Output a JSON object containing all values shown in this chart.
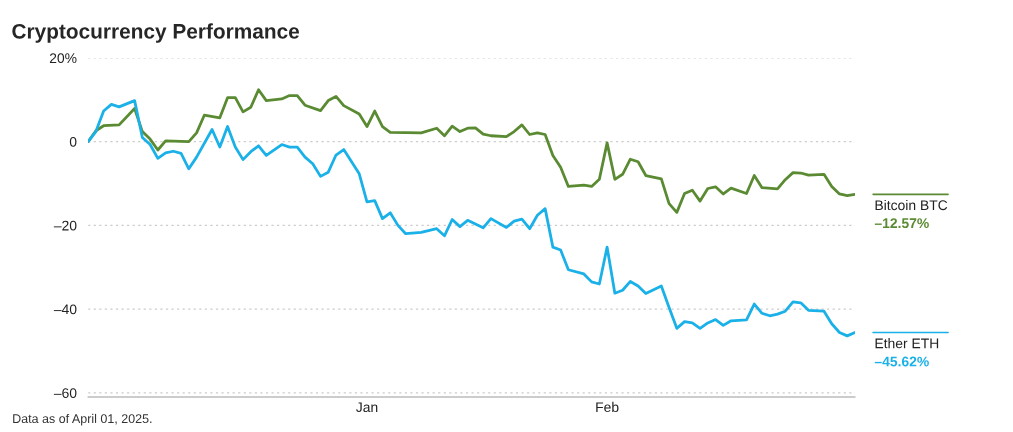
{
  "chart_data": {
    "type": "line",
    "title": "Cryptocurrency Performance",
    "series": [
      {
        "name": "Bitcoin BTC",
        "color": "#5a8a32",
        "x": [
          "2024-11-26",
          "2024-11-27",
          "2024-11-28",
          "2024-11-30",
          "2024-12-02",
          "2024-12-03",
          "2024-12-04",
          "2024-12-05",
          "2024-12-06",
          "2024-12-09",
          "2024-12-10",
          "2024-12-11",
          "2024-12-13",
          "2024-12-14",
          "2024-12-15",
          "2024-12-16",
          "2024-12-17",
          "2024-12-18",
          "2024-12-19",
          "2024-12-21",
          "2024-12-22",
          "2024-12-23",
          "2024-12-24",
          "2024-12-26",
          "2024-12-27",
          "2024-12-28",
          "2024-12-29",
          "2024-12-31",
          "2025-01-01",
          "2025-01-02",
          "2025-01-03",
          "2025-01-04",
          "2025-01-08",
          "2025-01-10",
          "2025-01-11",
          "2025-01-12",
          "2025-01-13",
          "2025-01-14",
          "2025-01-15",
          "2025-01-16",
          "2025-01-17",
          "2025-01-19",
          "2025-01-20",
          "2025-01-21",
          "2025-01-22",
          "2025-01-23",
          "2025-01-24",
          "2025-01-25",
          "2025-01-26",
          "2025-01-27",
          "2025-01-29",
          "2025-01-30",
          "2025-01-31",
          "2025-02-01",
          "2025-02-02",
          "2025-02-03",
          "2025-02-04",
          "2025-02-05",
          "2025-02-06",
          "2025-02-08",
          "2025-02-09",
          "2025-02-10",
          "2025-02-11",
          "2025-02-12",
          "2025-02-13",
          "2025-02-14",
          "2025-02-15",
          "2025-02-16",
          "2025-02-17",
          "2025-02-19",
          "2025-02-20",
          "2025-02-21",
          "2025-02-23",
          "2025-02-24",
          "2025-02-25",
          "2025-02-26",
          "2025-02-27",
          "2025-03-01",
          "2025-03-02",
          "2025-03-03",
          "2025-03-04",
          "2025-03-05"
        ],
        "values": [
          0,
          2.6,
          3.8,
          4.0,
          7.9,
          2.4,
          0.6,
          -2.0,
          0.2,
          0,
          2.1,
          6.3,
          5.7,
          10.5,
          10.5,
          7.1,
          8.2,
          12.4,
          9.8,
          10.2,
          11.0,
          11.0,
          8.7,
          7.4,
          9.8,
          10.8,
          8.6,
          6.6,
          3.6,
          7.3,
          3.6,
          2.2,
          2.1,
          3.2,
          1.4,
          3.7,
          2.4,
          3.2,
          3.3,
          1.8,
          1.4,
          1.2,
          2.4,
          4.0,
          1.7,
          2.1,
          1.7,
          -3.3,
          -6.1,
          -10.7,
          -10.4,
          -10.7,
          -9.0,
          -0.3,
          -9.0,
          -7.8,
          -4.2,
          -4.8,
          -8.1,
          -8.9,
          -14.8,
          -16.9,
          -12.4,
          -11.6,
          -14.2,
          -11.2,
          -10.8,
          -12.5,
          -11.1,
          -12.4,
          -8.1,
          -11.0,
          -11.3,
          -9.1,
          -7.4,
          -7.5,
          -8.0,
          -7.8,
          -10.7,
          -12.5,
          -12.9,
          -12.6
        ]
      },
      {
        "name": "Ether ETH",
        "color": "#1ab0e8",
        "x": [
          "2024-11-26",
          "2024-11-27",
          "2024-11-28",
          "2024-11-29",
          "2024-11-30",
          "2024-12-02",
          "2024-12-03",
          "2024-12-04",
          "2024-12-05",
          "2024-12-06",
          "2024-12-07",
          "2024-12-08",
          "2024-12-09",
          "2024-12-10",
          "2024-12-12",
          "2024-12-13",
          "2024-12-14",
          "2024-12-15",
          "2024-12-16",
          "2024-12-17",
          "2024-12-18",
          "2024-12-19",
          "2024-12-21",
          "2024-12-22",
          "2024-12-23",
          "2024-12-24",
          "2024-12-25",
          "2024-12-26",
          "2024-12-27",
          "2024-12-28",
          "2024-12-29",
          "2024-12-31",
          "2025-01-01",
          "2025-01-02",
          "2025-01-03",
          "2025-01-04",
          "2025-01-05",
          "2025-01-06",
          "2025-01-08",
          "2025-01-10",
          "2025-01-11",
          "2025-01-12",
          "2025-01-13",
          "2025-01-14",
          "2025-01-16",
          "2025-01-17",
          "2025-01-19",
          "2025-01-20",
          "2025-01-21",
          "2025-01-22",
          "2025-01-23",
          "2025-01-24",
          "2025-01-25",
          "2025-01-26",
          "2025-01-27",
          "2025-01-29",
          "2025-01-30",
          "2025-01-31",
          "2025-02-01",
          "2025-02-02",
          "2025-02-03",
          "2025-02-04",
          "2025-02-05",
          "2025-02-06",
          "2025-02-08",
          "2025-02-09",
          "2025-02-10",
          "2025-02-11",
          "2025-02-12",
          "2025-02-13",
          "2025-02-14",
          "2025-02-15",
          "2025-02-16",
          "2025-02-17",
          "2025-02-19",
          "2025-02-20",
          "2025-02-21",
          "2025-02-22",
          "2025-02-23",
          "2025-02-24",
          "2025-02-25",
          "2025-02-26",
          "2025-02-27",
          "2025-03-01",
          "2025-03-02",
          "2025-03-03",
          "2025-03-04",
          "2025-03-05"
        ],
        "values": [
          0,
          2.4,
          7.3,
          8.9,
          8.3,
          9.8,
          1.0,
          -0.7,
          -4.0,
          -2.7,
          -2.3,
          -2.8,
          -6.5,
          -3.7,
          2.9,
          -1.3,
          3.6,
          -1.3,
          -4.3,
          -2.4,
          -1.0,
          -3.3,
          -0.7,
          -1.3,
          -1.3,
          -3.7,
          -5.3,
          -8.3,
          -7.3,
          -3.2,
          -1.9,
          -7.7,
          -14.4,
          -14.1,
          -18.4,
          -17.0,
          -20.0,
          -22.0,
          -21.7,
          -20.8,
          -22.5,
          -18.6,
          -20.3,
          -18.8,
          -20.6,
          -18.4,
          -20.5,
          -19.0,
          -18.5,
          -20.8,
          -17.6,
          -16.0,
          -25.2,
          -25.9,
          -30.6,
          -31.6,
          -33.5,
          -34.0,
          -25.2,
          -36.2,
          -35.5,
          -33.4,
          -34.5,
          -36.3,
          -34.5,
          -39.6,
          -44.6,
          -43.0,
          -43.3,
          -44.6,
          -43.3,
          -42.5,
          -43.9,
          -42.8,
          -42.6,
          -38.8,
          -41.0,
          -41.6,
          -41.2,
          -40.5,
          -38.3,
          -38.5,
          -40.3,
          -40.5,
          -43.5,
          -45.6,
          -46.4,
          -45.6
        ]
      }
    ],
    "xlim": [
      "2024-11-26",
      "2025-03-05"
    ],
    "xticks": [
      {
        "value": "2025-01-01",
        "label": "Jan"
      },
      {
        "value": "2025-02-01",
        "label": "Feb"
      }
    ],
    "ylim": [
      -61,
      20
    ],
    "yticks": [
      {
        "value": 20,
        "label": "20%"
      },
      0,
      {
        "value": -20,
        "label": "–20"
      },
      {
        "value": -40,
        "label": "–40"
      },
      {
        "value": -60,
        "label": "–60"
      }
    ],
    "grid": "y",
    "annotations": [
      {
        "text": "–12.57%",
        "x": "2025-03-05",
        "y": -12.57
      },
      {
        "text": "–45.62%",
        "x": "2025-03-05",
        "y": -45.62
      },
      "Data as of April 01, 2025."
    ]
  }
}
